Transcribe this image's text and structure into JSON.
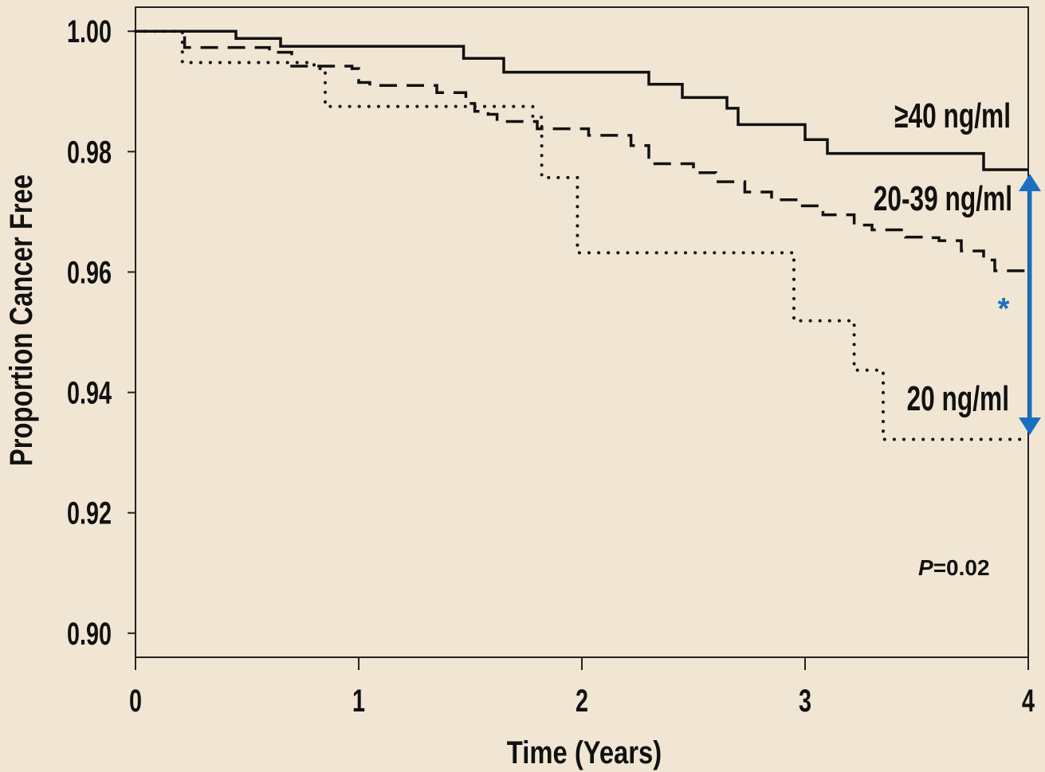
{
  "chart_data": {
    "type": "line",
    "title": "",
    "xlabel": "Time (Years)",
    "ylabel": "Proportion Cancer Free",
    "xlim": [
      0,
      4
    ],
    "ylim": [
      0.896,
      1.004
    ],
    "x_ticks": [
      "0",
      "1",
      "2",
      "3",
      "4"
    ],
    "y_ticks": [
      "0.90",
      "0.92",
      "0.94",
      "0.96",
      "0.98",
      "1.00"
    ],
    "grid": false,
    "step": true,
    "series": [
      {
        "name": "≥40 ng/ml",
        "style": "solid",
        "points": [
          [
            0,
            1.0
          ],
          [
            0.45,
            0.9988
          ],
          [
            0.65,
            0.9975
          ],
          [
            1.47,
            0.9955
          ],
          [
            1.65,
            0.9932
          ],
          [
            2.3,
            0.9912
          ],
          [
            2.45,
            0.989
          ],
          [
            2.65,
            0.9872
          ],
          [
            2.7,
            0.9845
          ],
          [
            3.0,
            0.982
          ],
          [
            3.1,
            0.9797
          ],
          [
            3.8,
            0.977
          ],
          [
            4.0,
            0.977
          ]
        ]
      },
      {
        "name": "20-39 ng/ml",
        "style": "dashed",
        "points": [
          [
            0,
            1.0
          ],
          [
            0.22,
            0.9973
          ],
          [
            0.6,
            0.9965
          ],
          [
            0.7,
            0.9942
          ],
          [
            0.97,
            0.9938
          ],
          [
            1.0,
            0.9915
          ],
          [
            1.05,
            0.991
          ],
          [
            1.35,
            0.9898
          ],
          [
            1.48,
            0.988
          ],
          [
            1.52,
            0.9867
          ],
          [
            1.58,
            0.9862
          ],
          [
            1.62,
            0.985
          ],
          [
            1.8,
            0.9838
          ],
          [
            2.03,
            0.9827
          ],
          [
            2.22,
            0.981
          ],
          [
            2.3,
            0.978
          ],
          [
            2.5,
            0.9765
          ],
          [
            2.6,
            0.975
          ],
          [
            2.73,
            0.9733
          ],
          [
            2.85,
            0.972
          ],
          [
            2.97,
            0.971
          ],
          [
            3.08,
            0.9695
          ],
          [
            3.22,
            0.9678
          ],
          [
            3.3,
            0.967
          ],
          [
            3.45,
            0.9658
          ],
          [
            3.55,
            0.9657
          ],
          [
            3.6,
            0.9652
          ],
          [
            3.7,
            0.9635
          ],
          [
            3.8,
            0.962
          ],
          [
            3.85,
            0.9602
          ],
          [
            4.0,
            0.9602
          ]
        ]
      },
      {
        "name": "20 ng/ml",
        "style": "dotted",
        "points": [
          [
            0,
            1.0
          ],
          [
            0.21,
            0.9948
          ],
          [
            0.8,
            0.9938
          ],
          [
            0.85,
            0.9875
          ],
          [
            1.78,
            0.9857
          ],
          [
            1.82,
            0.9757
          ],
          [
            1.98,
            0.9632
          ],
          [
            2.95,
            0.9519
          ],
          [
            3.22,
            0.9437
          ],
          [
            3.35,
            0.9322
          ],
          [
            4.0,
            0.9322
          ]
        ]
      }
    ],
    "annotations": {
      "asterisk": "*",
      "p_value_italic": "P",
      "p_value_rest": "=0.02"
    },
    "colors": {
      "background": "#f1e6d4",
      "line": "#111111",
      "arrow": "#1a6fc4"
    }
  }
}
